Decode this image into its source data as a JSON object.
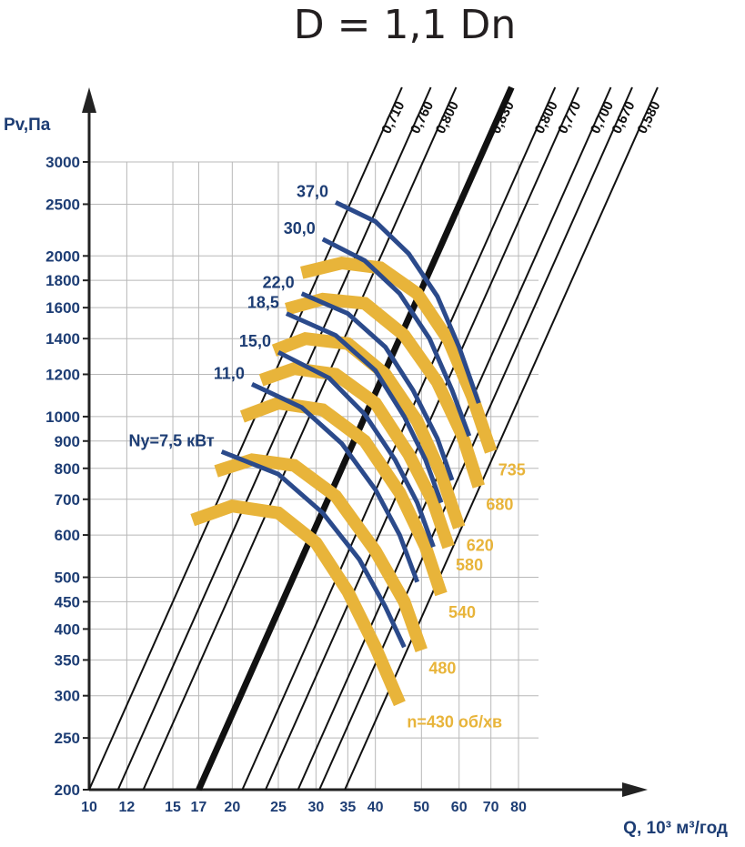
{
  "chart_data": {
    "type": "line",
    "title": "D = 1,1 Dn",
    "ylabel": "Pv,Па",
    "xlabel": "Q, 10³ м³/год",
    "y_scale": "log",
    "x_scale": "log",
    "ylim": [
      200,
      3000
    ],
    "xlim": [
      10,
      80
    ],
    "y_ticks": [
      "3000",
      "2500",
      "2000",
      "1800",
      "1600",
      "1400",
      "1200",
      "1000",
      "900",
      "800",
      "700",
      "600",
      "500",
      "450",
      "400",
      "350",
      "300",
      "250",
      "200"
    ],
    "x_ticks": [
      "10",
      "12",
      "15",
      "17",
      "20",
      "25",
      "30",
      "35",
      "40",
      "50",
      "60",
      "70",
      "80"
    ],
    "efficiency_lines": [
      {
        "label": "0,710",
        "q_at_200": 10.0,
        "bold": false
      },
      {
        "label": "0,760",
        "q_at_200": 11.5,
        "bold": false
      },
      {
        "label": "0,800",
        "q_at_200": 13.0,
        "bold": false
      },
      {
        "label": "0,830",
        "q_at_200": 17.0,
        "bold": true
      },
      {
        "label": "0,800",
        "q_at_200": 21.0,
        "bold": false
      },
      {
        "label": "0,770",
        "q_at_200": 23.5,
        "bold": false
      },
      {
        "label": "0,700",
        "q_at_200": 27.5,
        "bold": false
      },
      {
        "label": "0,670",
        "q_at_200": 30.5,
        "bold": false
      },
      {
        "label": "0,580",
        "q_at_200": 34.5,
        "bold": false
      }
    ],
    "speed_curves": [
      {
        "name": "n=430 об/хв",
        "label": "n=430 об/хв",
        "points": [
          [
            16.5,
            640
          ],
          [
            20.0,
            680
          ],
          [
            25.0,
            660
          ],
          [
            30.0,
            580
          ],
          [
            35.0,
            470
          ],
          [
            40.0,
            370
          ],
          [
            45.0,
            290
          ]
        ]
      },
      {
        "name": "480",
        "label": "480",
        "points": [
          [
            18.5,
            790
          ],
          [
            22.0,
            830
          ],
          [
            27.0,
            810
          ],
          [
            33.0,
            710
          ],
          [
            40.0,
            560
          ],
          [
            46.0,
            450
          ],
          [
            50.0,
            365
          ]
        ]
      },
      {
        "name": "540",
        "label": "540",
        "points": [
          [
            21.0,
            1000
          ],
          [
            25.0,
            1060
          ],
          [
            31.0,
            1030
          ],
          [
            38.0,
            900
          ],
          [
            45.0,
            720
          ],
          [
            51.0,
            570
          ],
          [
            55.0,
            465
          ]
        ]
      },
      {
        "name": "580",
        "label": "580",
        "points": [
          [
            23.0,
            1170
          ],
          [
            27.0,
            1230
          ],
          [
            33.0,
            1200
          ],
          [
            40.0,
            1060
          ],
          [
            47.0,
            850
          ],
          [
            53.0,
            690
          ],
          [
            57.0,
            570
          ]
        ]
      },
      {
        "name": "620",
        "label": "620",
        "points": [
          [
            24.5,
            1330
          ],
          [
            28.5,
            1400
          ],
          [
            35.0,
            1370
          ],
          [
            42.0,
            1200
          ],
          [
            49.0,
            980
          ],
          [
            55.0,
            780
          ],
          [
            60.0,
            620
          ]
        ]
      },
      {
        "name": "680",
        "label": "680",
        "points": [
          [
            26.0,
            1590
          ],
          [
            31.0,
            1660
          ],
          [
            38.0,
            1630
          ],
          [
            46.0,
            1420
          ],
          [
            54.0,
            1160
          ],
          [
            61.0,
            920
          ],
          [
            66.0,
            740
          ]
        ]
      },
      {
        "name": "735",
        "label": "735",
        "points": [
          [
            28.0,
            1860
          ],
          [
            34.0,
            1940
          ],
          [
            41.0,
            1900
          ],
          [
            49.0,
            1700
          ],
          [
            57.0,
            1390
          ],
          [
            64.0,
            1090
          ],
          [
            70.0,
            860
          ]
        ]
      }
    ],
    "power_curves": [
      {
        "name": "Ny=7,5 кВт",
        "label": "Ny=7,5 кВт",
        "points": [
          [
            19.0,
            860
          ],
          [
            25.0,
            780
          ],
          [
            31.0,
            660
          ],
          [
            37.0,
            540
          ],
          [
            42.0,
            440
          ],
          [
            46.0,
            370
          ]
        ]
      },
      {
        "name": "11,0",
        "label": "11,0",
        "points": [
          [
            22.0,
            1150
          ],
          [
            28.0,
            1040
          ],
          [
            34.0,
            890
          ],
          [
            40.0,
            730
          ],
          [
            45.0,
            600
          ],
          [
            49.0,
            490
          ]
        ]
      },
      {
        "name": "15,0",
        "label": "15,0",
        "points": [
          [
            25.0,
            1320
          ],
          [
            32.0,
            1180
          ],
          [
            38.0,
            1010
          ],
          [
            44.0,
            830
          ],
          [
            49.0,
            690
          ],
          [
            53.0,
            570
          ]
        ]
      },
      {
        "name": "18,5",
        "label": "18,5",
        "points": [
          [
            26.0,
            1560
          ],
          [
            33.0,
            1420
          ],
          [
            40.0,
            1220
          ],
          [
            46.0,
            1000
          ],
          [
            51.0,
            830
          ],
          [
            55.0,
            690
          ]
        ]
      },
      {
        "name": "22,0",
        "label": "22,0",
        "points": [
          [
            28.0,
            1700
          ],
          [
            35.0,
            1560
          ],
          [
            42.0,
            1350
          ],
          [
            48.0,
            1120
          ],
          [
            54.0,
            910
          ],
          [
            58.0,
            760
          ]
        ]
      },
      {
        "name": "30,0",
        "label": "30,0",
        "points": [
          [
            31.0,
            2150
          ],
          [
            38.0,
            1960
          ],
          [
            45.0,
            1700
          ],
          [
            52.0,
            1400
          ],
          [
            58.0,
            1120
          ],
          [
            63.0,
            920
          ]
        ]
      },
      {
        "name": "37,0",
        "label": "37,0",
        "points": [
          [
            33.0,
            2520
          ],
          [
            40.0,
            2320
          ],
          [
            47.0,
            2020
          ],
          [
            54.0,
            1680
          ],
          [
            60.0,
            1350
          ],
          [
            66.0,
            1060
          ]
        ]
      }
    ],
    "colors": {
      "speed": "#e8b43a",
      "power": "#2b4a8b",
      "axis": "#1d3d74",
      "grid": "#b8b8b8",
      "efficiency": "#111111"
    },
    "grid": true
  }
}
